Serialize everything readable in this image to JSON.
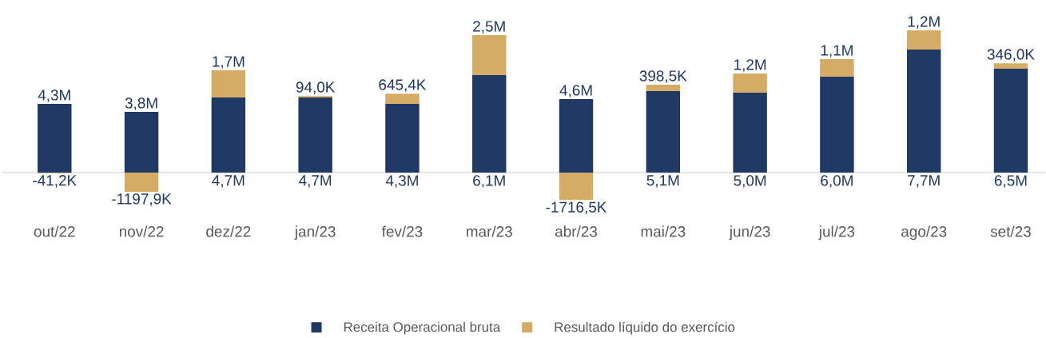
{
  "chart_data": {
    "type": "bar",
    "stacked": true,
    "legend": "bottom",
    "categories": [
      "out/22",
      "nov/22",
      "dez/22",
      "jan/23",
      "fev/23",
      "mar/23",
      "abr/23",
      "mai/23",
      "jun/23",
      "jul/23",
      "ago/23",
      "set/23"
    ],
    "series": [
      {
        "name": "Receita Operacional bruta",
        "color": "#1f3864",
        "values": [
          4300000,
          3800000,
          4700000,
          4700000,
          4300000,
          6100000,
          4600000,
          5100000,
          5000000,
          6000000,
          7700000,
          6500000
        ],
        "value_labels": [
          "4,3M",
          "3,8M",
          "4,7M",
          "4,7M",
          "4,3M",
          "6,1M",
          "4,6M",
          "5,1M",
          "5,0M",
          "6,0M",
          "7,7M",
          "6,5M"
        ]
      },
      {
        "name": "Resultado líquido do exercício",
        "color": "#d4ac66",
        "values": [
          -41200,
          -1197900,
          1700000,
          94000,
          645400,
          2500000,
          -1716500,
          398500,
          1200000,
          1100000,
          1200000,
          346000
        ],
        "value_labels": [
          "-41,2K",
          "-1197,9K",
          "1,7M",
          "94,0K",
          "645,4K",
          "2,5M",
          "-1716,5K",
          "398,5K",
          "1,2M",
          "1,1M",
          "1,2M",
          "346,0K"
        ]
      }
    ]
  }
}
